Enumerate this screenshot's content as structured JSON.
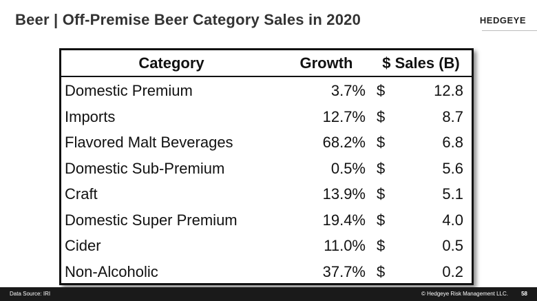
{
  "header": {
    "title": "Beer | Off-Premise Beer Category Sales in 2020",
    "logo": "HEDGEYE"
  },
  "table": {
    "columns": [
      "Category",
      "Growth",
      "$ Sales (B)"
    ],
    "rows": [
      [
        "Domestic Premium",
        "3.7%",
        "$",
        "12.8"
      ],
      [
        "Imports",
        "12.7%",
        "$",
        "8.7"
      ],
      [
        "Flavored Malt Beverages",
        "68.2%",
        "$",
        "6.8"
      ],
      [
        "Domestic Sub-Premium",
        "0.5%",
        "$",
        "5.6"
      ],
      [
        "Craft",
        "13.9%",
        "$",
        "5.1"
      ],
      [
        "Domestic Super Premium",
        "19.4%",
        "$",
        "4.0"
      ],
      [
        "Cider",
        "11.0%",
        "$",
        "0.5"
      ],
      [
        "Non-Alcoholic",
        "37.7%",
        "$",
        "0.2"
      ]
    ]
  },
  "footer": {
    "source": "Data Source: IRI",
    "copyright": "© Hedgeye Risk Management LLC.",
    "page": "58"
  }
}
